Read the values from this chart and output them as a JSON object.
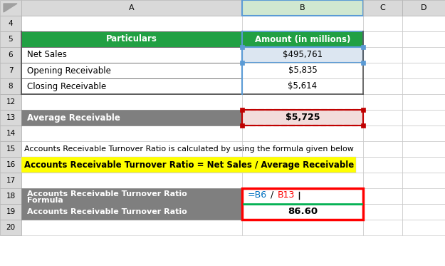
{
  "fig_width": 6.25,
  "fig_height": 3.73,
  "bg_color": "#ffffff",
  "col_header_bg": "#d9d9d9",
  "green_header_bg": "#21a043",
  "gray_row_bg": "#7f7f7f",
  "yellow_bg": "#ffff00",
  "light_blue_bg": "#dce6f1",
  "light_pink_bg": "#f2dcdb",
  "white_bg": "#ffffff",
  "particulars_label": "Particulars",
  "amount_label": "Amount (in millions)",
  "rows": [
    {
      "label": "Net Sales",
      "value": "$495,761"
    },
    {
      "label": "Opening Receivable",
      "value": "$5,835"
    },
    {
      "label": "Closing Receivable",
      "value": "$5,614"
    }
  ],
  "avg_label": "Average Receivable",
  "avg_value": "$5,725",
  "desc_text": "Accounts Receivable Turnover Ratio is calculated by using the formula given below",
  "formula_text": "Accounts Receivable Turnover Ratio = Net Sales / Average Receivable",
  "formula_label_line1": "Accounts Receivable Turnover Ratio",
  "formula_label_line2": "Formula",
  "ratio_label": "Accounts Receivable Turnover Ratio",
  "ratio_value": "86.60",
  "blue_color": "#0070c0",
  "red_color": "#ff0000",
  "dark_red_color": "#c00000",
  "green_line_color": "#00b050",
  "white_text": "#ffffff",
  "black_text": "#000000"
}
